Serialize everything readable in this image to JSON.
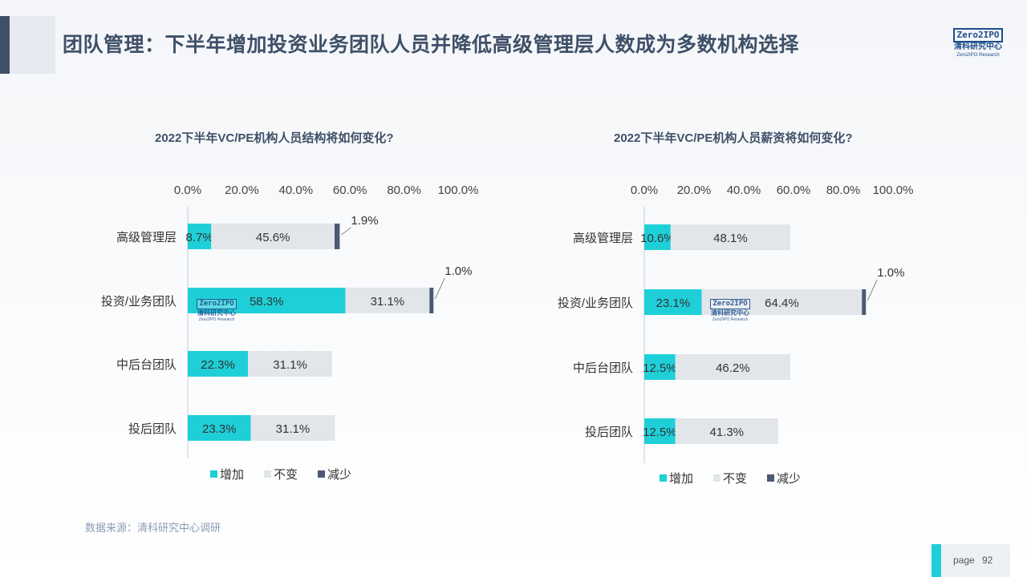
{
  "header": {
    "title": "团队管理：下半年增加投资业务团队人员并降低高级管理层人数成为多数机构选择",
    "logo_box": "Zero2IPO",
    "logo_cn": "清科研究中心",
    "logo_en": "Zero2IPO Research"
  },
  "watermark": {
    "box": "Zero2IPO",
    "cn": "清科研究中心",
    "en": "Zero2IPO Research"
  },
  "chart_data": [
    {
      "type": "bar",
      "stacked": true,
      "orientation": "horizontal",
      "title": "2022下半年VC/PE机构人员结构将如何变化?",
      "categories": [
        "高级管理层",
        "投资/业务团队",
        "中后台团队",
        "投后团队"
      ],
      "series": [
        {
          "name": "增加",
          "values": [
            8.7,
            58.3,
            22.3,
            23.3
          ],
          "color": "#1fcfd8"
        },
        {
          "name": "不变",
          "values": [
            45.6,
            31.1,
            31.1,
            31.1
          ],
          "color": "#e2e6eb"
        },
        {
          "name": "减少",
          "values": [
            1.9,
            1.0,
            null,
            null
          ],
          "color": "#4a5a73"
        }
      ],
      "xlim": [
        0,
        100
      ],
      "ticks": [
        "0.0%",
        "20.0%",
        "40.0%",
        "60.0%",
        "80.0%",
        "100.0%"
      ],
      "legend": "bottom"
    },
    {
      "type": "bar",
      "stacked": true,
      "orientation": "horizontal",
      "title": "2022下半年VC/PE机构人员薪资将如何变化?",
      "categories": [
        "高级管理层",
        "投资/业务团队",
        "中后台团队",
        "投后团队"
      ],
      "series": [
        {
          "name": "增加",
          "values": [
            10.6,
            23.1,
            12.5,
            12.5
          ],
          "color": "#1fcfd8"
        },
        {
          "name": "不变",
          "values": [
            48.1,
            64.4,
            46.2,
            41.3
          ],
          "color": "#e2e6eb"
        },
        {
          "name": "减少",
          "values": [
            null,
            1.0,
            null,
            null
          ],
          "color": "#4a5a73"
        }
      ],
      "xlim": [
        0,
        100
      ],
      "ticks": [
        "0.0%",
        "20.0%",
        "40.0%",
        "60.0%",
        "80.0%",
        "100.0%"
      ],
      "legend": "bottom"
    }
  ],
  "footer": {
    "source": "数据来源：清科研究中心调研",
    "page_label": "page",
    "page_number": "92"
  }
}
